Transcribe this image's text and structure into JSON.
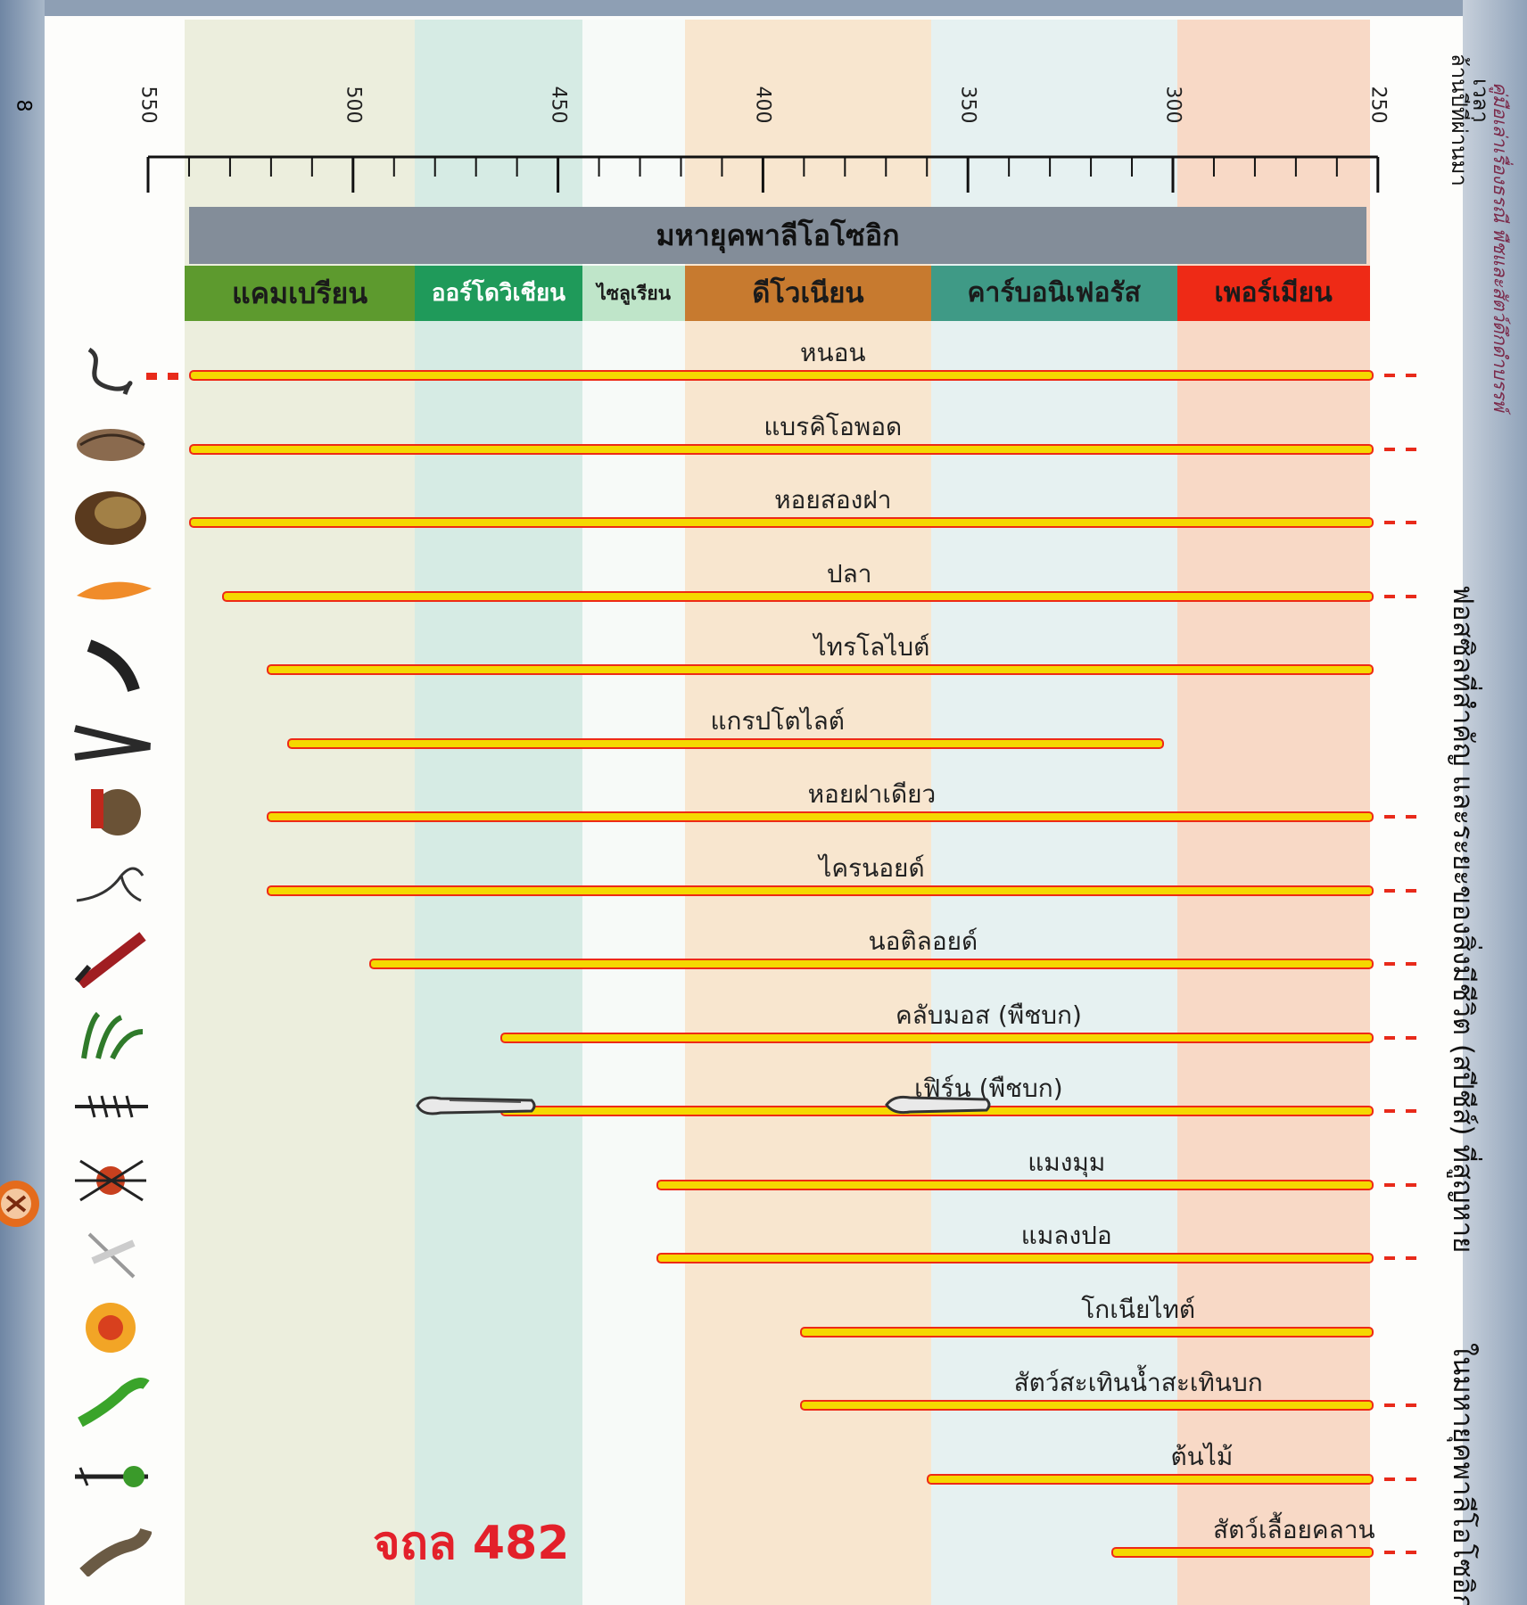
{
  "page_number": "8",
  "axis": {
    "title": "ล้านปีที่ผ่านมา",
    "subtitle": "เวลา",
    "labels": [
      "550",
      "500",
      "450",
      "400",
      "350",
      "300",
      "250"
    ]
  },
  "era": "มหายุคพาลีโอโซอิก",
  "periods": [
    {
      "name": "แคมเบรียน",
      "color": "#5d9a2e",
      "text_color": "#1b1b1b"
    },
    {
      "name": "ออร์โดวิเชียน",
      "color": "#1f9a5a",
      "text_color": "#ffffff"
    },
    {
      "name": "ไซลูเรียน",
      "color": "#bfe5c9",
      "text_color": "#1b1b1b"
    },
    {
      "name": "ดีโวเนียน",
      "color": "#c77a2f",
      "text_color": "#1b1b1b"
    },
    {
      "name": "คาร์บอนิเฟอรัส",
      "color": "#3f9a86",
      "text_color": "#1b1b1b"
    },
    {
      "name": "เพอร์เมียน",
      "color": "#ee2a16",
      "text_color": "#1b1b1b"
    }
  ],
  "organisms": [
    {
      "label": "หนอน",
      "start": 540,
      "end": 252,
      "continues": true,
      "icon": "worm-icon"
    },
    {
      "label": "แบรคิโอพอด",
      "start": 540,
      "end": 252,
      "continues": true,
      "icon": "brachiopod-icon"
    },
    {
      "label": "หอยสองฝา",
      "start": 540,
      "end": 252,
      "continues": true,
      "icon": "bivalve-icon"
    },
    {
      "label": "ปลา",
      "start": 532,
      "end": 252,
      "continues": true,
      "icon": "fish-icon"
    },
    {
      "label": "ไทรโลไบต์",
      "start": 521,
      "end": 252,
      "continues": false,
      "icon": "trilobite-icon"
    },
    {
      "label": "แกรปโตไลต์",
      "start": 516,
      "end": 303,
      "continues": false,
      "icon": "graptolite-icon"
    },
    {
      "label": "หอยฝาเดียว",
      "start": 521,
      "end": 252,
      "continues": true,
      "icon": "gastropod-icon"
    },
    {
      "label": "ไครนอยด์",
      "start": 521,
      "end": 252,
      "continues": true,
      "icon": "crinoid-icon"
    },
    {
      "label": "นอติลอยด์",
      "start": 496,
      "end": 252,
      "continues": true,
      "icon": "nautiloid-icon"
    },
    {
      "label": "คลับมอส (พืชบก)",
      "start": 464,
      "end": 252,
      "continues": true,
      "icon": "clubmoss-icon"
    },
    {
      "label": "เฟิร์น (พืชบก)",
      "start": 464,
      "end": 252,
      "continues": true,
      "icon": "fern-icon"
    },
    {
      "label": "แมงมุม",
      "start": 426,
      "end": 252,
      "continues": true,
      "icon": "spider-icon"
    },
    {
      "label": "แมลงปอ",
      "start": 426,
      "end": 252,
      "continues": true,
      "icon": "dragonfly-icon"
    },
    {
      "label": "โกเนียไทต์",
      "start": 391,
      "end": 252,
      "continues": false,
      "icon": "goniatite-icon"
    },
    {
      "label": "สัตว์สะเทินน้ำสะเทินบก",
      "start": 391,
      "end": 252,
      "continues": true,
      "icon": "amphibian-icon"
    },
    {
      "label": "ต้นไม้",
      "start": 360,
      "end": 252,
      "continues": true,
      "icon": "tree-icon"
    },
    {
      "label": "สัตว์เลื้อยคลาน",
      "start": 315,
      "end": 252,
      "continues": true,
      "icon": "reptile-icon"
    }
  ],
  "side_caption_main": "ฟอสซิลที่สำคัญ และระยะของสิ่งมีชีวิต (สปีชีส์) ที่สูญหาย",
  "side_caption_tail": "ในมหายุคพาลีโอโซอิก",
  "header_caption": "คู่มือเล่าเรื่องธรณี พืชและสัตว์ดึกดำบรรพ์",
  "stamp_code": "จถล 482"
}
